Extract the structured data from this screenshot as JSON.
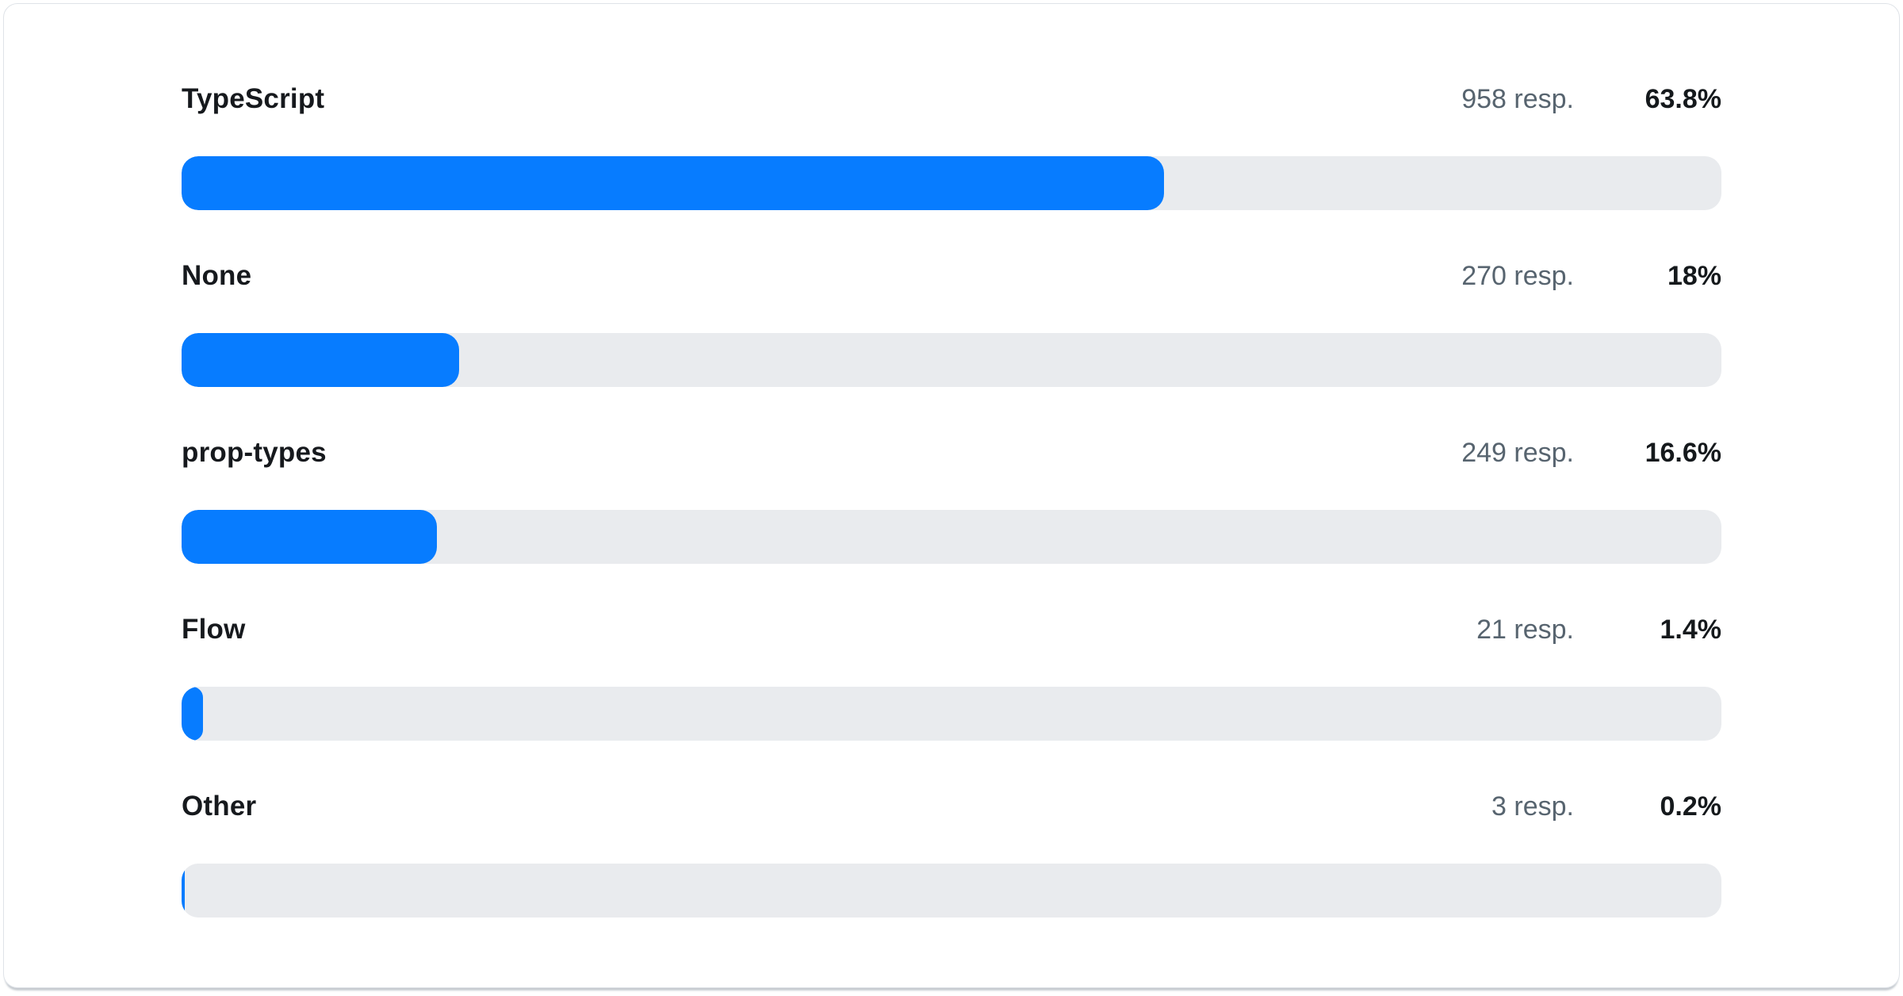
{
  "colors": {
    "bar_fill": "#077cff",
    "bar_track": "#e9ebee",
    "label_text": "#16191d",
    "muted_text": "#57646f",
    "card_border": "#dfe3e8",
    "card_background": "#ffffff"
  },
  "chart_data": {
    "type": "bar",
    "orientation": "horizontal",
    "categories": [
      "TypeScript",
      "None",
      "prop-types",
      "Flow",
      "Other"
    ],
    "values": [
      63.8,
      18,
      16.6,
      1.4,
      0.2
    ],
    "responses": [
      958,
      270,
      249,
      21,
      3
    ],
    "value_unit": "%",
    "xlim": [
      0,
      100
    ],
    "title": "",
    "legend": "none",
    "grid": "off"
  },
  "rows": [
    {
      "label": "TypeScript",
      "responses": "958 resp.",
      "percent": "63.8%",
      "value": 63.8
    },
    {
      "label": "None",
      "responses": "270 resp.",
      "percent": "18%",
      "value": 18
    },
    {
      "label": "prop-types",
      "responses": "249 resp.",
      "percent": "16.6%",
      "value": 16.6
    },
    {
      "label": "Flow",
      "responses": "21 resp.",
      "percent": "1.4%",
      "value": 1.4
    },
    {
      "label": "Other",
      "responses": "3 resp.",
      "percent": "0.2%",
      "value": 0.2
    }
  ]
}
